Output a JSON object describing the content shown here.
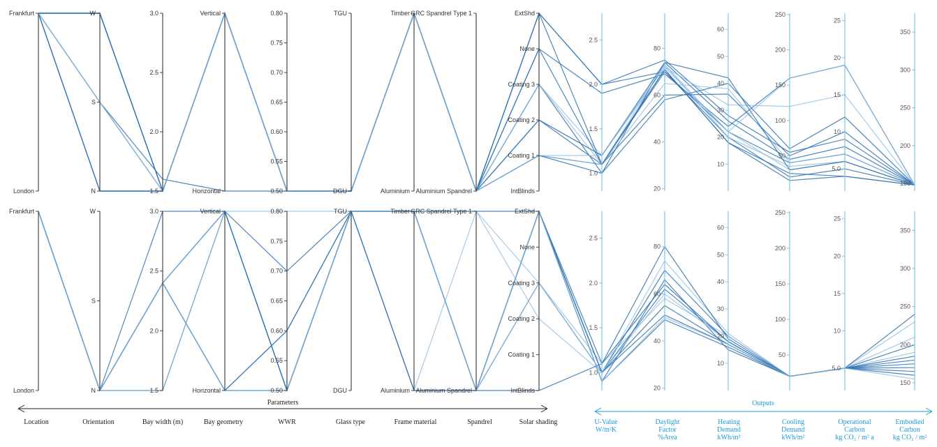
{
  "chart_data": [
    {
      "type": "parallel-coordinates",
      "panel": "top",
      "dimensions": [
        {
          "name": "Location",
          "categories": [
            "London",
            "Frankfurt"
          ]
        },
        {
          "name": "Orientation",
          "categories": [
            "N",
            "S",
            "W"
          ]
        },
        {
          "name": "Bay width (m)",
          "range": [
            1.5,
            3.0
          ],
          "ticks": [
            1.5,
            2.0,
            2.5,
            3.0
          ]
        },
        {
          "name": "Bay geometry",
          "categories": [
            "Horizontal",
            "Vertical"
          ]
        },
        {
          "name": "WWR",
          "range": [
            0.5,
            0.8
          ],
          "ticks": [
            0.5,
            0.55,
            0.6,
            0.65,
            0.7,
            0.75,
            0.8
          ]
        },
        {
          "name": "Glass type",
          "categories": [
            "DGU",
            "TGU"
          ]
        },
        {
          "name": "Frame material",
          "categories": [
            "Aluminium",
            "Timber"
          ]
        },
        {
          "name": "Spandrel",
          "categories": [
            "Aluminium Spandrel",
            "GRC Spandrel Type 1"
          ]
        },
        {
          "name": "Solar shading",
          "categories": [
            "IntBlinds",
            "Coating 1",
            "Coating 2",
            "Coating 3",
            "None",
            "ExtShd"
          ]
        },
        {
          "name": "U-Value",
          "range": [
            0.8,
            2.8
          ],
          "ticks": [
            1.0,
            1.5,
            2.0,
            2.5
          ]
        },
        {
          "name": "Daylight Factor",
          "range": [
            19,
            95
          ],
          "ticks": [
            20,
            40,
            60,
            80
          ]
        },
        {
          "name": "Heating Demand",
          "range": [
            0,
            66
          ],
          "ticks": [
            10,
            20,
            30,
            40,
            50,
            60
          ]
        },
        {
          "name": "Cooling Demand",
          "range": [
            0,
            252
          ],
          "ticks": [
            50,
            100,
            150,
            200,
            250
          ]
        },
        {
          "name": "Operational Carbon",
          "range": [
            2,
            26
          ],
          "ticks": [
            5,
            10,
            15,
            20,
            25
          ]
        },
        {
          "name": "Embodied Carbon",
          "range": [
            140,
            375
          ],
          "ticks": [
            150,
            200,
            250,
            300,
            350
          ]
        }
      ],
      "series": [
        {
          "values": [
            "Frankfurt",
            "W",
            1.5,
            "Vertical",
            0.5,
            "DGU",
            "Timber",
            "Aluminium Spandrel",
            "ExtShd",
            2.0,
            70,
            22,
            40,
            7,
            148
          ]
        },
        {
          "values": [
            "Frankfurt",
            "W",
            1.5,
            "Vertical",
            0.5,
            "DGU",
            "Timber",
            "Aluminium Spandrel",
            "None",
            1.9,
            69,
            24,
            160,
            19,
            148
          ]
        },
        {
          "values": [
            "Frankfurt",
            "S",
            1.5,
            "Vertical",
            0.5,
            "DGU",
            "Timber",
            "Aluminium Spandrel",
            "Coating 3",
            1.2,
            72,
            22,
            30,
            6,
            148
          ]
        },
        {
          "values": [
            "Frankfurt",
            "S",
            1.6,
            "Horizontal",
            0.5,
            "DGU",
            "Timber",
            "Aluminium Spandrel",
            "Coating 2",
            1.1,
            70,
            20,
            20,
            5,
            148
          ]
        },
        {
          "values": [
            "Frankfurt",
            "N",
            1.5,
            "Vertical",
            0.5,
            "DGU",
            "Timber",
            "Aluminium Spandrel",
            "Coating 1",
            1.1,
            71,
            18,
            25,
            4,
            148
          ]
        },
        {
          "values": [
            "Frankfurt",
            "N",
            1.5,
            "Vertical",
            0.5,
            "DGU",
            "Timber",
            "Aluminium Spandrel",
            "Coating 1",
            1.1,
            73,
            20,
            35,
            6,
            148
          ]
        },
        {
          "values": [
            "Frankfurt",
            "W",
            1.5,
            "Vertical",
            0.5,
            "DGU",
            "Timber",
            "Aluminium Spandrel",
            "Coating 3",
            1.0,
            74,
            26,
            45,
            8,
            148
          ]
        },
        {
          "values": [
            "Frankfurt",
            "S",
            1.5,
            "Vertical",
            0.5,
            "DGU",
            "Timber",
            "Aluminium Spandrel",
            "ExtShd",
            2.0,
            75,
            28,
            55,
            9,
            148
          ]
        },
        {
          "values": [
            "Frankfurt",
            "N",
            1.5,
            "Vertical",
            0.5,
            "DGU",
            "Timber",
            "Aluminium Spandrel",
            "Coating 2",
            1.2,
            72,
            32,
            120,
            15,
            148
          ]
        },
        {
          "values": [
            "Frankfurt",
            "N",
            1.5,
            "Vertical",
            0.5,
            "DGU",
            "Timber",
            "Aluminium Spandrel",
            "None",
            1.1,
            60,
            36,
            50,
            10,
            148
          ]
        },
        {
          "values": [
            "Frankfurt",
            "W",
            1.5,
            "Vertical",
            0.5,
            "DGU",
            "Timber",
            "Aluminium Spandrel",
            "Coating 1",
            1.0,
            58,
            40,
            60,
            12,
            148
          ]
        },
        {
          "values": [
            "Frankfurt",
            "S",
            1.5,
            "Vertical",
            0.5,
            "DGU",
            "Timber",
            "Aluminium Spandrel",
            "Coating 3",
            1.1,
            65,
            38,
            40,
            7,
            148
          ]
        },
        {
          "values": [
            "Frankfurt",
            "W",
            1.5,
            "Vertical",
            0.5,
            "DGU",
            "Timber",
            "Aluminium Spandrel",
            "Coating 2",
            1.2,
            74,
            42,
            30,
            6,
            148
          ]
        },
        {
          "values": [
            "Frankfurt",
            "N",
            1.5,
            "Vertical",
            0.5,
            "DGU",
            "Timber",
            "Aluminium Spandrel",
            "ExtShd",
            1.1,
            71,
            18,
            15,
            4,
            148
          ]
        },
        {
          "values": [
            "Frankfurt",
            "S",
            1.5,
            "Vertical",
            0.5,
            "DGU",
            "Timber",
            "Aluminium Spandrel",
            "Coating 1",
            1.2,
            73,
            22,
            160,
            19,
            148
          ]
        }
      ]
    },
    {
      "type": "parallel-coordinates",
      "panel": "bottom",
      "dimensions": [
        {
          "name": "Location",
          "categories": [
            "London",
            "Frankfurt"
          ]
        },
        {
          "name": "Orientation",
          "categories": [
            "N",
            "S",
            "W"
          ]
        },
        {
          "name": "Bay width (m)",
          "range": [
            1.5,
            3.0
          ],
          "ticks": [
            1.5,
            2.0,
            2.5,
            3.0
          ]
        },
        {
          "name": "Bay geometry",
          "categories": [
            "Horizontal",
            "Vertical"
          ]
        },
        {
          "name": "WWR",
          "range": [
            0.5,
            0.8
          ],
          "ticks": [
            0.5,
            0.55,
            0.6,
            0.65,
            0.7,
            0.75,
            0.8
          ]
        },
        {
          "name": "Glass type",
          "categories": [
            "DGU",
            "TGU"
          ]
        },
        {
          "name": "Frame material",
          "categories": [
            "Aluminium",
            "Timber"
          ]
        },
        {
          "name": "Spandrel",
          "categories": [
            "Aluminium Spandrel",
            "GRC Spandrel Type 1"
          ]
        },
        {
          "name": "Solar shading",
          "categories": [
            "IntBlinds",
            "Coating 1",
            "Coating 2",
            "Coating 3",
            "None",
            "ExtShd"
          ]
        },
        {
          "name": "U-Value",
          "range": [
            0.8,
            2.8
          ],
          "ticks": [
            1.0,
            1.5,
            2.0,
            2.5
          ]
        },
        {
          "name": "Daylight Factor",
          "range": [
            19,
            95
          ],
          "ticks": [
            20,
            40,
            60,
            80
          ]
        },
        {
          "name": "Heating Demand",
          "range": [
            0,
            66
          ],
          "ticks": [
            10,
            20,
            30,
            40,
            50,
            60
          ]
        },
        {
          "name": "Cooling Demand",
          "range": [
            0,
            252
          ],
          "ticks": [
            50,
            100,
            150,
            200,
            250
          ]
        },
        {
          "name": "Operational Carbon",
          "range": [
            2,
            26
          ],
          "ticks": [
            5,
            10,
            15,
            20,
            25
          ]
        },
        {
          "name": "Embodied Carbon",
          "range": [
            140,
            375
          ],
          "ticks": [
            150,
            200,
            250,
            300,
            350
          ]
        }
      ],
      "series": [
        {
          "values": [
            "Frankfurt",
            "N",
            2.4,
            "Vertical",
            0.5,
            "TGU",
            "Timber",
            "Aluminium Spandrel",
            "ExtShd",
            1.0,
            70,
            20,
            20,
            5,
            180
          ]
        },
        {
          "values": [
            "Frankfurt",
            "N",
            2.4,
            "Vertical",
            0.7,
            "TGU",
            "Timber",
            "Aluminium Spandrel",
            "ExtShd",
            1.0,
            62,
            18,
            20,
            5,
            200
          ]
        },
        {
          "values": [
            "Frankfurt",
            "N",
            2.4,
            "Horizontal",
            0.5,
            "TGU",
            "Aluminium",
            "GRC Spandrel Type 1",
            "Coating 3",
            1.1,
            58,
            20,
            20,
            5,
            190
          ]
        },
        {
          "values": [
            "Frankfurt",
            "N",
            2.4,
            "Horizontal",
            0.6,
            "TGU",
            "Aluminium",
            "Aluminium Spandrel",
            "Coating 3",
            1.0,
            55,
            17,
            20,
            5,
            170
          ]
        },
        {
          "values": [
            "Frankfurt",
            "N",
            1.5,
            "Vertical",
            0.5,
            "TGU",
            "Timber",
            "Aluminium Spandrel",
            "ExtShd",
            0.9,
            66,
            15,
            20,
            5,
            160
          ]
        },
        {
          "values": [
            "Frankfurt",
            "N",
            1.5,
            "Vertical",
            0.5,
            "TGU",
            "Timber",
            "GRC Spandrel Type 1",
            "Coating 2",
            1.0,
            74,
            21,
            20,
            5,
            230
          ]
        },
        {
          "values": [
            "Frankfurt",
            "N",
            2.4,
            "Vertical",
            0.5,
            "TGU",
            "Timber",
            "Aluminium Spandrel",
            "IntBlinds",
            1.1,
            80,
            19,
            20,
            5,
            240
          ]
        },
        {
          "values": [
            "Frankfurt",
            "N",
            2.4,
            "Horizontal",
            0.6,
            "TGU",
            "Aluminium",
            "Aluminium Spandrel",
            "ExtShd",
            0.9,
            49,
            16,
            20,
            5,
            165
          ]
        },
        {
          "values": [
            "Frankfurt",
            "N",
            2.4,
            "Vertical",
            0.8,
            "TGU",
            "Timber",
            "Aluminium Spandrel",
            "Coating 3",
            1.0,
            60,
            18,
            20,
            5,
            210
          ]
        },
        {
          "values": [
            "Frankfurt",
            "N",
            2.4,
            "Horizontal",
            0.5,
            "TGU",
            "Timber",
            "GRC Spandrel Type 1",
            "ExtShd",
            1.0,
            51,
            17,
            20,
            5,
            175
          ]
        },
        {
          "values": [
            "Frankfurt",
            "N",
            3.0,
            "Vertical",
            0.5,
            "TGU",
            "Timber",
            "Aluminium Spandrel",
            "ExtShd",
            1.1,
            64,
            18,
            20,
            5,
            185
          ]
        },
        {
          "values": [
            "Frankfurt",
            "N",
            2.4,
            "Horizontal",
            0.5,
            "TGU",
            "Timber",
            "Aluminium Spandrel",
            "ExtShd",
            0.9,
            50,
            17,
            20,
            5,
            155
          ]
        }
      ]
    }
  ],
  "footer": {
    "parameters_label": "Parameters",
    "outputs_label": "Outputs",
    "param_labels": [
      "Location",
      "Orientation",
      "Bay width (m)",
      "Bay geometry",
      "WWR",
      "Glass type",
      "Frame material",
      "Spandrel",
      "Solar shading"
    ],
    "output_labels": [
      [
        "U-Value",
        "W/m²K"
      ],
      [
        "Daylight",
        "Factor",
        "%Area"
      ],
      [
        "Heating",
        "Demand",
        "kWh/m²"
      ],
      [
        "Cooling",
        "Demand",
        "kWh/m²"
      ],
      [
        "Operational",
        "Carbon",
        "kg CO₂ / m² a"
      ],
      [
        "Embodied",
        "Carbon",
        "kg CO₂ / m²"
      ]
    ]
  },
  "colors": {
    "line": "#2f72b2",
    "line_light": "#8ab8df",
    "output_axis": "#7fc3e3",
    "output_accent": "#1a9bd7",
    "axis": "#444444"
  }
}
